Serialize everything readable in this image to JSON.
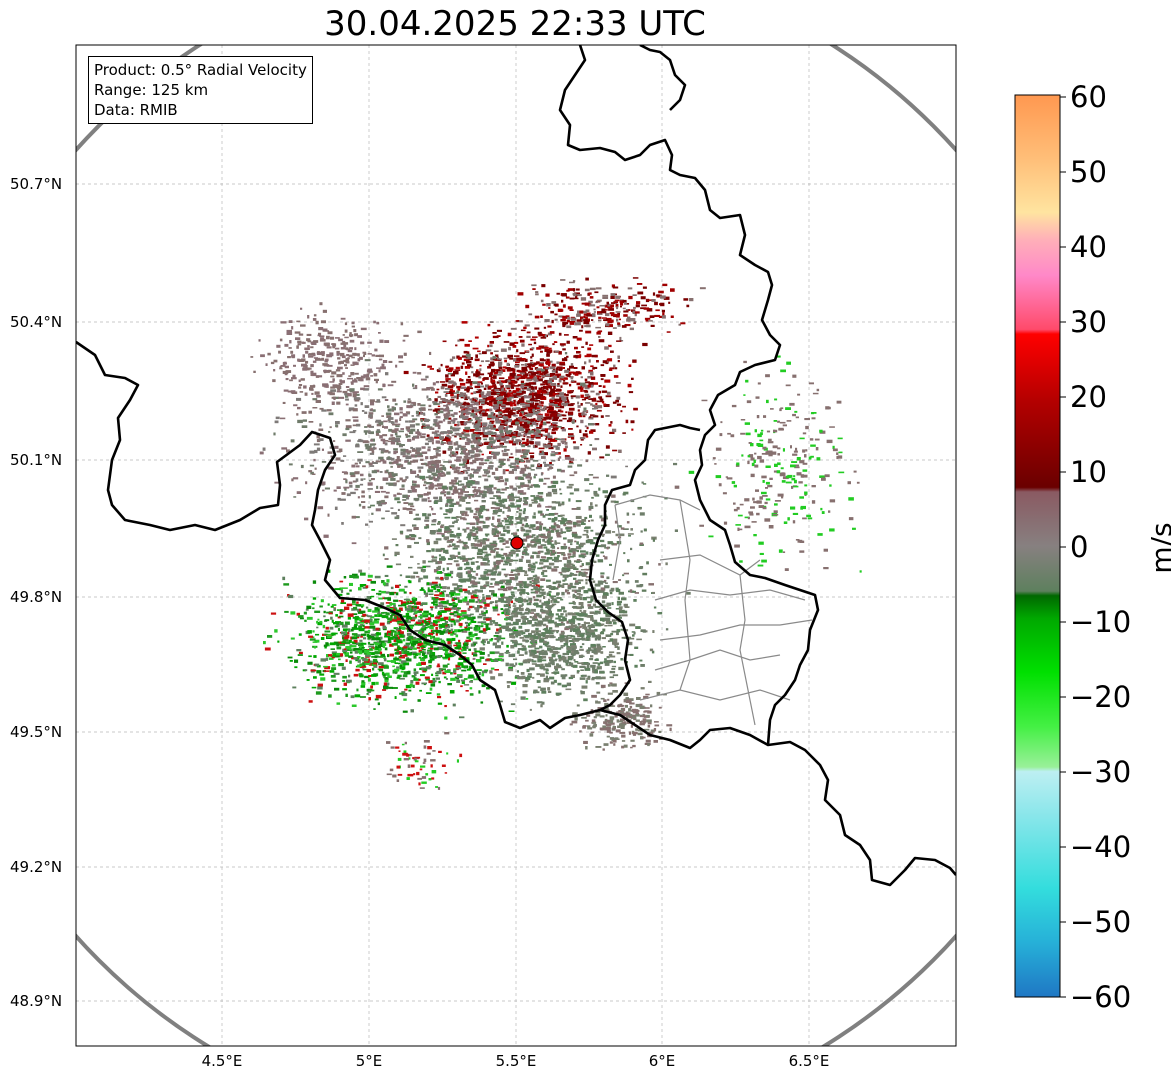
{
  "title": "30.04.2025 22:33 UTC",
  "info": {
    "product": "Product: 0.5° Radial Velocity",
    "range": "Range: 125 km",
    "source": "Data: RMIB"
  },
  "lat_labels": [
    "50.7°N",
    "50.4°N",
    "50.1°N",
    "49.8°N",
    "49.5°N",
    "49.2°N",
    "48.9°N"
  ],
  "lon_labels": [
    "4.5°E",
    "5°E",
    "5.5°E",
    "6°E",
    "6.5°E"
  ],
  "colorbar": {
    "unit": "m/s",
    "ticks": [
      "60",
      "50",
      "40",
      "30",
      "20",
      "10",
      "0",
      "−10",
      "−20",
      "−30",
      "−40",
      "−50",
      "−60"
    ],
    "min": -60,
    "max": 60
  },
  "colors": {
    "border": "#000000",
    "range_ring": "#808080",
    "radar_site": "#e00000",
    "outbound_strong": "#7a0000",
    "near_zero": "#87706f",
    "inbound": "#1e9a1e"
  }
}
